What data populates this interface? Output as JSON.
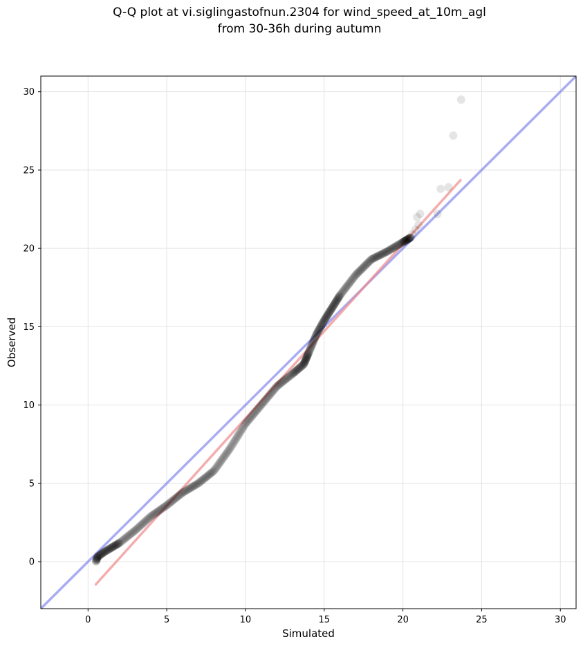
{
  "chart_data": {
    "type": "scatter",
    "title_lines": [
      "Q-Q plot at vi.siglingastofnun.2304 for wind_speed_at_10m_agl",
      "from 30-36h during autumn"
    ],
    "xlabel": "Simulated",
    "ylabel": "Observed",
    "xlim": [
      -3,
      31
    ],
    "ylim": [
      -3,
      31
    ],
    "xticks": [
      0,
      5,
      10,
      15,
      20,
      25,
      30
    ],
    "yticks": [
      0,
      5,
      10,
      15,
      20,
      25,
      30
    ],
    "grid": true,
    "points_color": "#000000",
    "identity_line": {
      "from": [
        -3,
        -3
      ],
      "to": [
        31,
        31
      ],
      "color": "#6f75ea"
    },
    "fit_line": {
      "from": [
        0.45,
        -1.5
      ],
      "to": [
        23.7,
        24.4
      ],
      "color": "#f08a8a"
    },
    "quantile_anchors": [
      [
        0.5,
        0.0
      ],
      [
        0.6,
        0.3
      ],
      [
        1.0,
        0.6
      ],
      [
        1.5,
        0.9
      ],
      [
        2.0,
        1.2
      ],
      [
        3.0,
        2.0
      ],
      [
        4.0,
        2.9
      ],
      [
        5.0,
        3.6
      ],
      [
        6.0,
        4.4
      ],
      [
        7.0,
        5.0
      ],
      [
        8.0,
        5.8
      ],
      [
        9.0,
        7.2
      ],
      [
        10.0,
        8.8
      ],
      [
        11.0,
        10.0
      ],
      [
        12.0,
        11.2
      ],
      [
        13.0,
        12.0
      ],
      [
        13.7,
        12.6
      ],
      [
        14.0,
        13.3
      ],
      [
        14.5,
        14.5
      ],
      [
        15.0,
        15.4
      ],
      [
        15.5,
        16.2
      ],
      [
        16.0,
        17.0
      ],
      [
        17.0,
        18.3
      ],
      [
        18.0,
        19.3
      ],
      [
        19.0,
        19.8
      ],
      [
        20.0,
        20.4
      ],
      [
        20.5,
        20.7
      ]
    ],
    "tail_points": [
      [
        20.6,
        20.9
      ],
      [
        20.8,
        21.2
      ],
      [
        21.0,
        21.5
      ],
      [
        20.9,
        22.0
      ],
      [
        21.1,
        22.2
      ],
      [
        22.2,
        22.2
      ],
      [
        22.4,
        23.8
      ],
      [
        22.9,
        23.9
      ],
      [
        23.2,
        27.2
      ],
      [
        23.7,
        29.5
      ]
    ]
  }
}
